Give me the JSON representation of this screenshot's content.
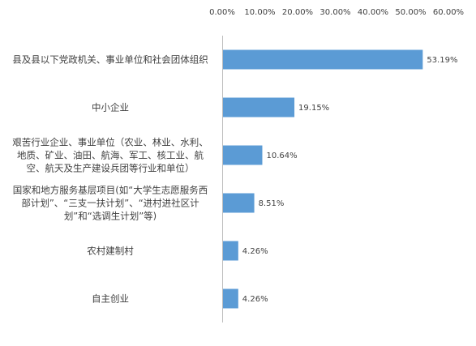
{
  "chart_data": {
    "type": "bar",
    "orientation": "horizontal",
    "categories": [
      [
        "县及县以下党政机关、事业单位和社会团体组织"
      ],
      [
        "中小企业"
      ],
      [
        "艰苦行业企业、事业单位（农业、林业、水利、",
        "地质、矿业、油田、航海、军工、核工业、航",
        "空、航天及生产建设兵团等行业和单位）"
      ],
      [
        "国家和地方服务基层项目(如“大学生志愿服务西",
        "部计划”、“三支一扶计划”、“进村进社区计",
        "划”和“选调生计划”等)"
      ],
      [
        "农村建制村"
      ],
      [
        "自主创业"
      ]
    ],
    "values": [
      53.19,
      19.15,
      10.64,
      8.51,
      4.26,
      4.26
    ],
    "value_labels": [
      "53.19%",
      "19.15%",
      "10.64%",
      "8.51%",
      "4.26%",
      "4.26%"
    ],
    "x_ticks": [
      "0.00%",
      "10.00%",
      "20.00%",
      "30.00%",
      "40.00%",
      "50.00%",
      "60.00%"
    ],
    "xlim": [
      0,
      60
    ],
    "x_axis_position": "top",
    "bar_color": "#5B9BD5",
    "grid": false,
    "legend": "none"
  }
}
